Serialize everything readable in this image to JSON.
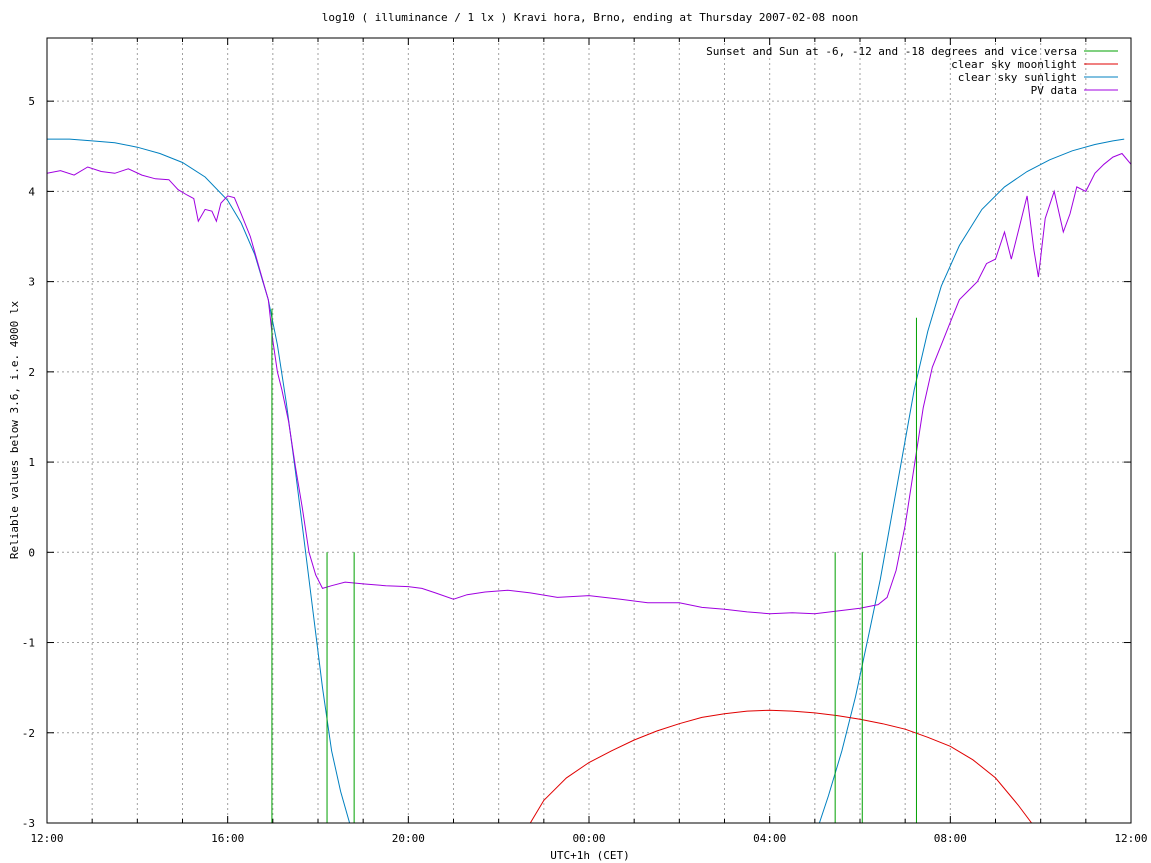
{
  "chart_data": {
    "type": "line",
    "title": "log10 ( illuminance / 1 lx ) Kravi hora, Brno, ending at Thursday 2007-02-08 noon",
    "xlabel": "UTC+1h (CET)",
    "ylabel": "Reliable values below 3.6, i.e. 4000 lx",
    "xlim": [
      0,
      24
    ],
    "ylim": [
      -3,
      5.7
    ],
    "grid": true,
    "legend_position": "top-right",
    "x_unit": "hours after 2007-02-07 12:00 CET",
    "x_ticks": [
      {
        "value": 0,
        "label": "12:00"
      },
      {
        "value": 4,
        "label": "16:00"
      },
      {
        "value": 8,
        "label": "20:00"
      },
      {
        "value": 12,
        "label": "00:00"
      },
      {
        "value": 16,
        "label": "04:00"
      },
      {
        "value": 20,
        "label": "08:00"
      },
      {
        "value": 24,
        "label": "12:00"
      }
    ],
    "y_ticks": [
      {
        "value": -3,
        "label": "-3"
      },
      {
        "value": -2,
        "label": "-2"
      },
      {
        "value": -1,
        "label": "-1"
      },
      {
        "value": 0,
        "label": "0"
      },
      {
        "value": 1,
        "label": "1"
      },
      {
        "value": 2,
        "label": "2"
      },
      {
        "value": 3,
        "label": "3"
      },
      {
        "value": 4,
        "label": "4"
      },
      {
        "value": 5,
        "label": "5"
      }
    ],
    "series": [
      {
        "name": "Sunset and Sun at -6, -12 and -18 degrees and vice versa",
        "color": "#00a000",
        "kind": "impulses",
        "points": [
          {
            "x": 4.98,
            "y": 2.7
          },
          {
            "x": 6.2,
            "y": 0
          },
          {
            "x": 6.8,
            "y": 0
          },
          {
            "x": 17.45,
            "y": 0
          },
          {
            "x": 18.05,
            "y": 0
          },
          {
            "x": 19.25,
            "y": 2.6
          }
        ]
      },
      {
        "name": "clear sky moonlight",
        "color": "#e00000",
        "kind": "line",
        "points": [
          {
            "x": 10.7,
            "y": -3.0
          },
          {
            "x": 11.0,
            "y": -2.75
          },
          {
            "x": 11.5,
            "y": -2.5
          },
          {
            "x": 12.0,
            "y": -2.33
          },
          {
            "x": 12.5,
            "y": -2.2
          },
          {
            "x": 13.0,
            "y": -2.08
          },
          {
            "x": 13.5,
            "y": -1.98
          },
          {
            "x": 14.0,
            "y": -1.9
          },
          {
            "x": 14.5,
            "y": -1.83
          },
          {
            "x": 15.0,
            "y": -1.79
          },
          {
            "x": 15.5,
            "y": -1.76
          },
          {
            "x": 16.0,
            "y": -1.75
          },
          {
            "x": 16.5,
            "y": -1.76
          },
          {
            "x": 17.0,
            "y": -1.78
          },
          {
            "x": 17.5,
            "y": -1.81
          },
          {
            "x": 18.0,
            "y": -1.85
          },
          {
            "x": 18.5,
            "y": -1.9
          },
          {
            "x": 19.0,
            "y": -1.96
          },
          {
            "x": 19.5,
            "y": -2.05
          },
          {
            "x": 20.0,
            "y": -2.15
          },
          {
            "x": 20.5,
            "y": -2.3
          },
          {
            "x": 21.0,
            "y": -2.5
          },
          {
            "x": 21.5,
            "y": -2.8
          },
          {
            "x": 21.8,
            "y": -3.0
          }
        ]
      },
      {
        "name": "clear sky sunlight",
        "color": "#0080c0",
        "kind": "line",
        "points": [
          {
            "x": 0.0,
            "y": 4.58
          },
          {
            "x": 0.5,
            "y": 4.58
          },
          {
            "x": 1.0,
            "y": 4.56
          },
          {
            "x": 1.5,
            "y": 4.54
          },
          {
            "x": 2.0,
            "y": 4.49
          },
          {
            "x": 2.5,
            "y": 4.42
          },
          {
            "x": 3.0,
            "y": 4.32
          },
          {
            "x": 3.5,
            "y": 4.16
          },
          {
            "x": 4.0,
            "y": 3.9
          },
          {
            "x": 4.3,
            "y": 3.65
          },
          {
            "x": 4.6,
            "y": 3.3
          },
          {
            "x": 4.9,
            "y": 2.8
          },
          {
            "x": 5.1,
            "y": 2.3
          },
          {
            "x": 5.3,
            "y": 1.65
          },
          {
            "x": 5.5,
            "y": 0.9
          },
          {
            "x": 5.7,
            "y": 0.1
          },
          {
            "x": 5.9,
            "y": -0.7
          },
          {
            "x": 6.1,
            "y": -1.5
          },
          {
            "x": 6.3,
            "y": -2.2
          },
          {
            "x": 6.5,
            "y": -2.65
          },
          {
            "x": 6.7,
            "y": -3.0
          },
          {
            "x": 17.1,
            "y": -3.0
          },
          {
            "x": 17.3,
            "y": -2.7
          },
          {
            "x": 17.6,
            "y": -2.2
          },
          {
            "x": 17.9,
            "y": -1.6
          },
          {
            "x": 18.2,
            "y": -0.9
          },
          {
            "x": 18.45,
            "y": -0.3
          },
          {
            "x": 18.7,
            "y": 0.4
          },
          {
            "x": 18.95,
            "y": 1.1
          },
          {
            "x": 19.2,
            "y": 1.8
          },
          {
            "x": 19.5,
            "y": 2.45
          },
          {
            "x": 19.8,
            "y": 2.95
          },
          {
            "x": 20.2,
            "y": 3.4
          },
          {
            "x": 20.7,
            "y": 3.8
          },
          {
            "x": 21.2,
            "y": 4.05
          },
          {
            "x": 21.7,
            "y": 4.22
          },
          {
            "x": 22.2,
            "y": 4.35
          },
          {
            "x": 22.7,
            "y": 4.45
          },
          {
            "x": 23.2,
            "y": 4.52
          },
          {
            "x": 23.6,
            "y": 4.56
          },
          {
            "x": 23.85,
            "y": 4.58
          }
        ]
      },
      {
        "name": "PV data",
        "color": "#a000e0",
        "kind": "line",
        "points": [
          {
            "x": 0.0,
            "y": 4.2
          },
          {
            "x": 0.3,
            "y": 4.23
          },
          {
            "x": 0.6,
            "y": 4.18
          },
          {
            "x": 0.9,
            "y": 4.27
          },
          {
            "x": 1.2,
            "y": 4.22
          },
          {
            "x": 1.5,
            "y": 4.2
          },
          {
            "x": 1.8,
            "y": 4.25
          },
          {
            "x": 2.1,
            "y": 4.18
          },
          {
            "x": 2.4,
            "y": 4.14
          },
          {
            "x": 2.7,
            "y": 4.13
          },
          {
            "x": 2.9,
            "y": 4.02
          },
          {
            "x": 3.1,
            "y": 3.96
          },
          {
            "x": 3.25,
            "y": 3.92
          },
          {
            "x": 3.35,
            "y": 3.67
          },
          {
            "x": 3.5,
            "y": 3.8
          },
          {
            "x": 3.65,
            "y": 3.78
          },
          {
            "x": 3.75,
            "y": 3.67
          },
          {
            "x": 3.85,
            "y": 3.87
          },
          {
            "x": 4.0,
            "y": 3.95
          },
          {
            "x": 4.15,
            "y": 3.93
          },
          {
            "x": 4.3,
            "y": 3.75
          },
          {
            "x": 4.5,
            "y": 3.5
          },
          {
            "x": 4.7,
            "y": 3.15
          },
          {
            "x": 4.9,
            "y": 2.8
          },
          {
            "x": 5.0,
            "y": 2.35
          },
          {
            "x": 5.1,
            "y": 2.0
          },
          {
            "x": 5.2,
            "y": 1.8
          },
          {
            "x": 5.35,
            "y": 1.45
          },
          {
            "x": 5.5,
            "y": 0.95
          },
          {
            "x": 5.65,
            "y": 0.5
          },
          {
            "x": 5.8,
            "y": 0.0
          },
          {
            "x": 5.95,
            "y": -0.25
          },
          {
            "x": 6.1,
            "y": -0.4
          },
          {
            "x": 6.3,
            "y": -0.37
          },
          {
            "x": 6.6,
            "y": -0.33
          },
          {
            "x": 7.0,
            "y": -0.35
          },
          {
            "x": 7.5,
            "y": -0.37
          },
          {
            "x": 8.0,
            "y": -0.38
          },
          {
            "x": 8.3,
            "y": -0.4
          },
          {
            "x": 8.6,
            "y": -0.45
          },
          {
            "x": 9.0,
            "y": -0.52
          },
          {
            "x": 9.3,
            "y": -0.47
          },
          {
            "x": 9.7,
            "y": -0.44
          },
          {
            "x": 10.2,
            "y": -0.42
          },
          {
            "x": 10.7,
            "y": -0.45
          },
          {
            "x": 11.3,
            "y": -0.5
          },
          {
            "x": 12.0,
            "y": -0.48
          },
          {
            "x": 12.7,
            "y": -0.52
          },
          {
            "x": 13.3,
            "y": -0.56
          },
          {
            "x": 14.0,
            "y": -0.56
          },
          {
            "x": 14.5,
            "y": -0.61
          },
          {
            "x": 15.0,
            "y": -0.63
          },
          {
            "x": 15.5,
            "y": -0.66
          },
          {
            "x": 16.0,
            "y": -0.68
          },
          {
            "x": 16.5,
            "y": -0.67
          },
          {
            "x": 17.0,
            "y": -0.68
          },
          {
            "x": 17.5,
            "y": -0.65
          },
          {
            "x": 18.0,
            "y": -0.62
          },
          {
            "x": 18.4,
            "y": -0.58
          },
          {
            "x": 18.6,
            "y": -0.5
          },
          {
            "x": 18.8,
            "y": -0.2
          },
          {
            "x": 19.0,
            "y": 0.3
          },
          {
            "x": 19.2,
            "y": 0.95
          },
          {
            "x": 19.4,
            "y": 1.6
          },
          {
            "x": 19.6,
            "y": 2.05
          },
          {
            "x": 19.8,
            "y": 2.3
          },
          {
            "x": 20.0,
            "y": 2.55
          },
          {
            "x": 20.2,
            "y": 2.8
          },
          {
            "x": 20.4,
            "y": 2.9
          },
          {
            "x": 20.6,
            "y": 3.0
          },
          {
            "x": 20.8,
            "y": 3.2
          },
          {
            "x": 21.0,
            "y": 3.25
          },
          {
            "x": 21.2,
            "y": 3.55
          },
          {
            "x": 21.35,
            "y": 3.25
          },
          {
            "x": 21.5,
            "y": 3.55
          },
          {
            "x": 21.7,
            "y": 3.95
          },
          {
            "x": 21.85,
            "y": 3.35
          },
          {
            "x": 21.95,
            "y": 3.05
          },
          {
            "x": 22.1,
            "y": 3.7
          },
          {
            "x": 22.3,
            "y": 4.0
          },
          {
            "x": 22.5,
            "y": 3.55
          },
          {
            "x": 22.65,
            "y": 3.75
          },
          {
            "x": 22.8,
            "y": 4.05
          },
          {
            "x": 23.0,
            "y": 4.0
          },
          {
            "x": 23.2,
            "y": 4.2
          },
          {
            "x": 23.4,
            "y": 4.3
          },
          {
            "x": 23.6,
            "y": 4.38
          },
          {
            "x": 23.8,
            "y": 4.42
          },
          {
            "x": 24.0,
            "y": 4.3
          }
        ]
      }
    ]
  }
}
